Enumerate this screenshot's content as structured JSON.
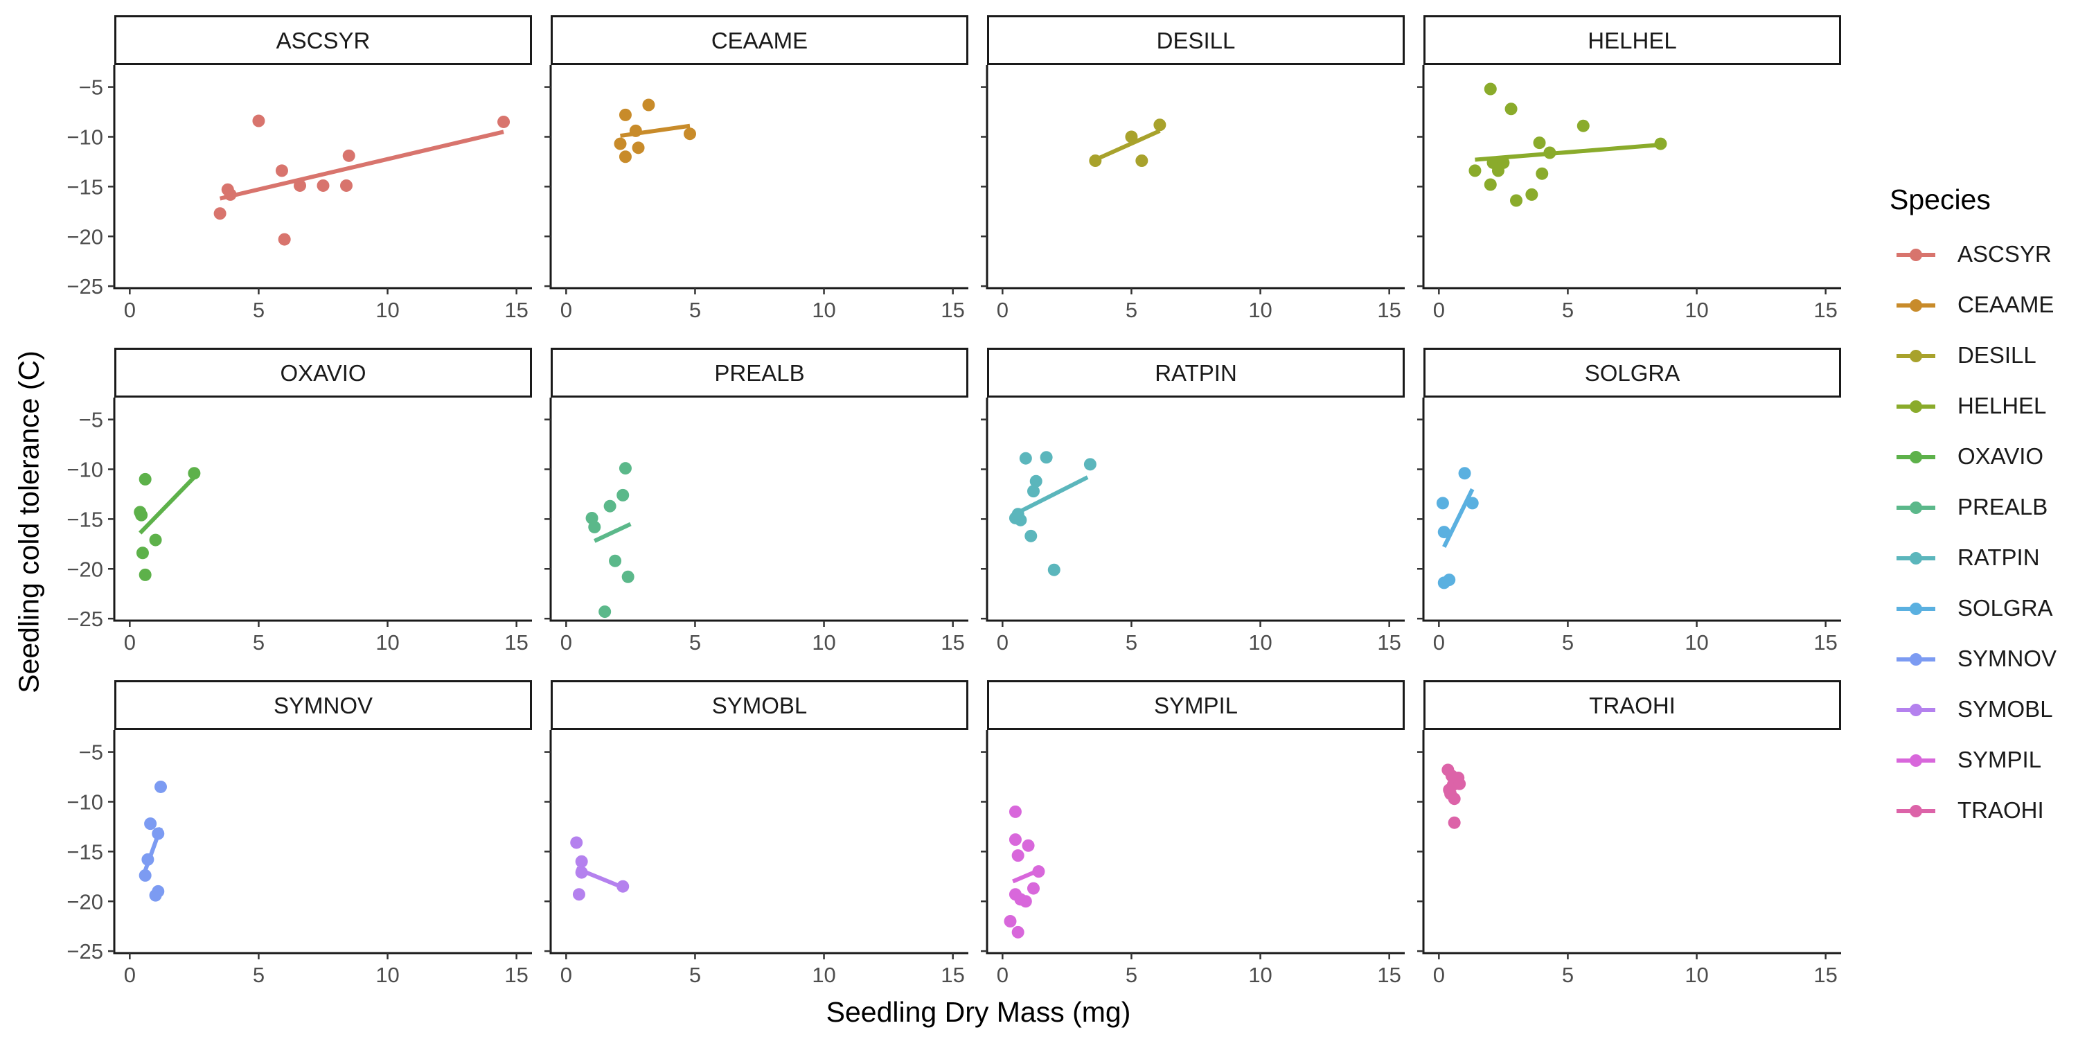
{
  "chart_data": {
    "type": "scatter",
    "facet_by": "Species",
    "xlabel": "Seedling Dry Mass (mg)",
    "ylabel": "Seedling cold tolerance (C)",
    "xlim": [
      -0.6,
      15.6
    ],
    "ylim": [
      -25.2,
      -2.8
    ],
    "x_ticks": [
      0,
      5,
      10,
      15
    ],
    "y_ticks": [
      -5,
      -10,
      -15,
      -20,
      -25
    ],
    "grid": false,
    "trend": "linear fit per species",
    "legend": {
      "title": "Species",
      "position": "right"
    },
    "series": [
      {
        "name": "ASCSYR",
        "color": "#D8746D",
        "points": [
          [
            3.5,
            -17.7
          ],
          [
            3.8,
            -15.3
          ],
          [
            3.9,
            -15.8
          ],
          [
            5.0,
            -8.4
          ],
          [
            5.9,
            -13.4
          ],
          [
            6.0,
            -20.3
          ],
          [
            6.6,
            -14.9
          ],
          [
            7.5,
            -14.9
          ],
          [
            8.4,
            -14.9
          ],
          [
            8.5,
            -11.9
          ],
          [
            14.5,
            -8.5
          ]
        ],
        "fit": [
          [
            3.5,
            -16.2
          ],
          [
            14.5,
            -9.5
          ]
        ]
      },
      {
        "name": "CEAAME",
        "color": "#C88B2A",
        "points": [
          [
            2.1,
            -10.7
          ],
          [
            2.3,
            -12.0
          ],
          [
            2.3,
            -7.8
          ],
          [
            2.7,
            -9.4
          ],
          [
            2.8,
            -11.1
          ],
          [
            3.2,
            -6.8
          ],
          [
            4.8,
            -9.7
          ]
        ],
        "fit": [
          [
            2.1,
            -9.9
          ],
          [
            4.8,
            -8.9
          ]
        ]
      },
      {
        "name": "DESILL",
        "color": "#A8A22C",
        "points": [
          [
            3.6,
            -12.4
          ],
          [
            5.0,
            -10.0
          ],
          [
            5.4,
            -12.4
          ],
          [
            6.1,
            -8.8
          ]
        ],
        "fit": [
          [
            3.6,
            -12.3
          ],
          [
            6.1,
            -9.4
          ]
        ]
      },
      {
        "name": "HELHEL",
        "color": "#8AAB2B",
        "points": [
          [
            1.4,
            -13.4
          ],
          [
            2.0,
            -14.8
          ],
          [
            2.0,
            -5.2
          ],
          [
            2.1,
            -12.6
          ],
          [
            2.3,
            -13.4
          ],
          [
            2.5,
            -12.6
          ],
          [
            2.8,
            -7.2
          ],
          [
            3.0,
            -16.4
          ],
          [
            3.6,
            -15.8
          ],
          [
            3.9,
            -10.6
          ],
          [
            4.0,
            -13.7
          ],
          [
            4.3,
            -11.6
          ],
          [
            5.6,
            -8.9
          ],
          [
            8.6,
            -10.7
          ]
        ],
        "fit": [
          [
            1.4,
            -12.3
          ],
          [
            8.6,
            -10.8
          ]
        ]
      },
      {
        "name": "OXAVIO",
        "color": "#5DB14A",
        "points": [
          [
            0.4,
            -14.3
          ],
          [
            0.45,
            -14.6
          ],
          [
            0.5,
            -18.4
          ],
          [
            0.6,
            -20.6
          ],
          [
            0.6,
            -11.0
          ],
          [
            1.0,
            -17.1
          ],
          [
            2.5,
            -10.4
          ]
        ],
        "fit": [
          [
            0.4,
            -16.4
          ],
          [
            2.5,
            -10.8
          ]
        ]
      },
      {
        "name": "PREALB",
        "color": "#5BB88A",
        "points": [
          [
            1.0,
            -14.9
          ],
          [
            1.1,
            -15.8
          ],
          [
            1.5,
            -24.3
          ],
          [
            1.7,
            -13.7
          ],
          [
            1.9,
            -19.2
          ],
          [
            2.2,
            -12.6
          ],
          [
            2.3,
            -9.9
          ],
          [
            2.4,
            -20.8
          ]
        ],
        "fit": [
          [
            1.1,
            -17.2
          ],
          [
            2.5,
            -15.5
          ]
        ]
      },
      {
        "name": "RATPIN",
        "color": "#5BB6BC",
        "points": [
          [
            0.5,
            -14.9
          ],
          [
            0.6,
            -14.5
          ],
          [
            0.7,
            -15.1
          ],
          [
            0.9,
            -8.9
          ],
          [
            1.1,
            -16.7
          ],
          [
            1.2,
            -12.2
          ],
          [
            1.3,
            -11.2
          ],
          [
            1.7,
            -8.8
          ],
          [
            2.0,
            -20.1
          ],
          [
            3.4,
            -9.5
          ]
        ],
        "fit": [
          [
            0.4,
            -14.6
          ],
          [
            3.3,
            -10.8
          ]
        ]
      },
      {
        "name": "SOLGRA",
        "color": "#5AB0E0",
        "points": [
          [
            0.15,
            -13.4
          ],
          [
            0.2,
            -16.3
          ],
          [
            0.2,
            -21.4
          ],
          [
            0.4,
            -21.1
          ],
          [
            1.0,
            -10.4
          ],
          [
            1.3,
            -13.4
          ]
        ],
        "fit": [
          [
            0.2,
            -17.8
          ],
          [
            1.3,
            -12.0
          ]
        ]
      },
      {
        "name": "SYMNOV",
        "color": "#7C9BF2",
        "points": [
          [
            0.6,
            -17.4
          ],
          [
            0.7,
            -15.8
          ],
          [
            0.8,
            -12.2
          ],
          [
            1.0,
            -19.4
          ],
          [
            1.1,
            -13.2
          ],
          [
            1.1,
            -19.0
          ],
          [
            1.2,
            -8.5
          ]
        ],
        "fit": [
          [
            0.6,
            -16.9
          ],
          [
            1.2,
            -12.6
          ]
        ]
      },
      {
        "name": "SYMOBL",
        "color": "#B481EE",
        "points": [
          [
            0.4,
            -14.1
          ],
          [
            0.5,
            -19.3
          ],
          [
            0.6,
            -16.0
          ],
          [
            0.6,
            -17.1
          ],
          [
            2.2,
            -18.5
          ]
        ],
        "fit": [
          [
            0.4,
            -16.7
          ],
          [
            2.2,
            -18.6
          ]
        ]
      },
      {
        "name": "SYMPIL",
        "color": "#D867DB",
        "points": [
          [
            0.3,
            -22.0
          ],
          [
            0.5,
            -11.0
          ],
          [
            0.5,
            -13.8
          ],
          [
            0.5,
            -19.3
          ],
          [
            0.6,
            -15.4
          ],
          [
            0.6,
            -23.1
          ],
          [
            0.7,
            -19.8
          ],
          [
            0.9,
            -20.0
          ],
          [
            1.0,
            -14.4
          ],
          [
            1.2,
            -18.7
          ],
          [
            1.4,
            -17.0
          ]
        ],
        "fit": [
          [
            0.4,
            -18.0
          ],
          [
            1.4,
            -16.9
          ]
        ]
      },
      {
        "name": "TRAOHI",
        "color": "#DC63A8",
        "points": [
          [
            0.35,
            -6.8
          ],
          [
            0.4,
            -8.8
          ],
          [
            0.45,
            -9.2
          ],
          [
            0.5,
            -7.4
          ],
          [
            0.55,
            -8.3
          ],
          [
            0.6,
            -9.7
          ],
          [
            0.6,
            -12.1
          ],
          [
            0.75,
            -7.6
          ],
          [
            0.8,
            -8.2
          ]
        ],
        "fit": [
          [
            0.35,
            -8.7
          ],
          [
            0.8,
            -8.0
          ]
        ]
      }
    ]
  }
}
